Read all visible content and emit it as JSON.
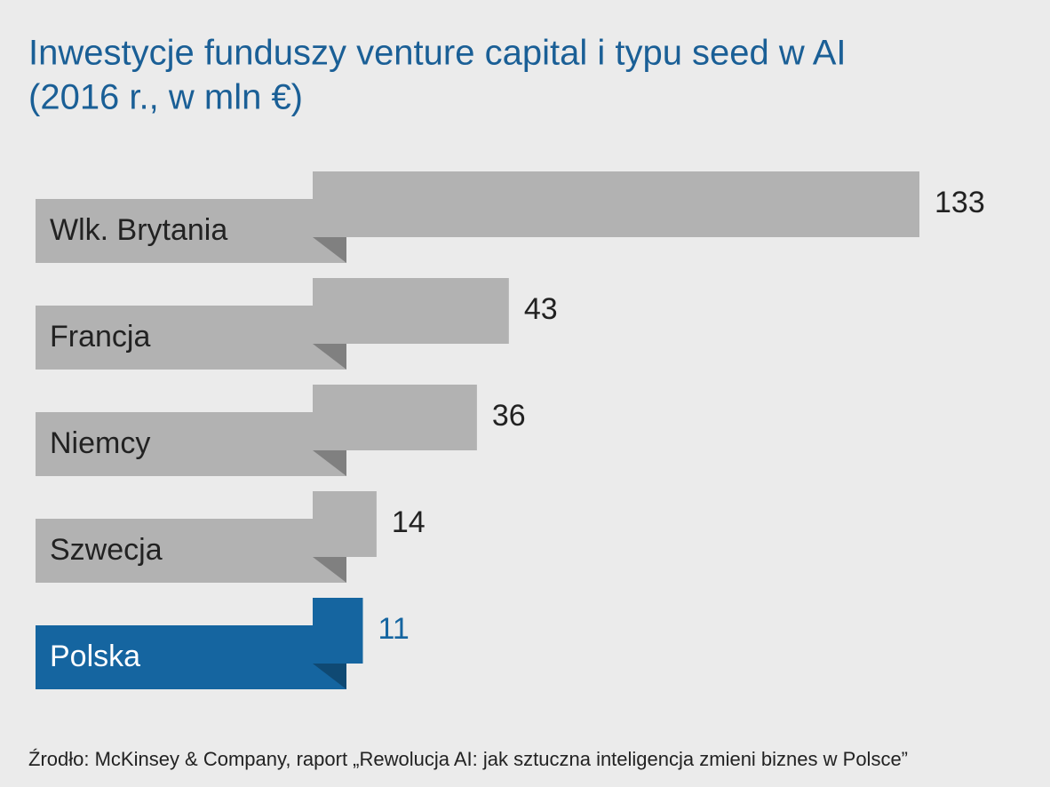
{
  "chart_data": {
    "type": "bar",
    "orientation": "horizontal",
    "title": "Inwestycje funduszy venture capital i typu seed w AI",
    "subtitle": "(2016 r., w mln €)",
    "categories": [
      "Wlk. Brytania",
      "Francja",
      "Niemcy",
      "Szwecja",
      "Polska"
    ],
    "values": [
      133,
      43,
      36,
      14,
      11
    ],
    "colors": [
      "#b2b2b2",
      "#b2b2b2",
      "#b2b2b2",
      "#b2b2b2",
      "#1565a0"
    ],
    "source": "Źrodło: McKinsey & Company, raport „Rewolucja AI: jak sztuczna inteligencja zmieni biznes w Polsce”"
  }
}
